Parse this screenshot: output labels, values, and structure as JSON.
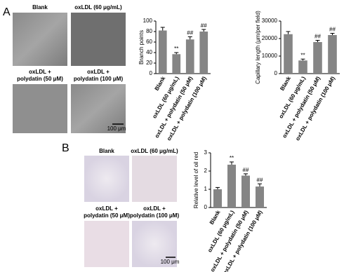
{
  "panels": [
    {
      "label": "A",
      "captions": [
        [
          "Blank"
        ],
        [
          "oxLDL (60 μg/mL)"
        ],
        [
          "oxLDL +",
          "polydatin (50 μM)"
        ],
        [
          "oxLDL +",
          "polydatin (100 μM)"
        ]
      ],
      "scale_bar": "100 μm"
    },
    {
      "label": "B",
      "captions": [
        [
          "Blank"
        ],
        [
          "oxLDL (60 μg/mL)"
        ],
        [
          "oxLDL +",
          "polydatin (50 μM)"
        ],
        [
          "oxLDL +",
          "polydatin (100 μM)"
        ]
      ],
      "scale_bar": "100 μm"
    }
  ],
  "chart_data": [
    {
      "type": "bar",
      "ylabel": "Branch points",
      "color": "#858585",
      "categories": [
        "Blank",
        "oxLDL (60 μg/mL)",
        "oxLDL + polydatin (50 μM)",
        "oxLDL + polydatin (100 μM)"
      ],
      "values": [
        82,
        37,
        65,
        80
      ],
      "errors": [
        6,
        3,
        5,
        4
      ],
      "significance": [
        null,
        "**",
        "##",
        "##"
      ],
      "ylim": [
        0,
        100
      ],
      "yticks": [
        0,
        20,
        40,
        60,
        80,
        100
      ]
    },
    {
      "type": "bar",
      "ylabel": "Capillary length (μm/per field)",
      "color": "#858585",
      "categories": [
        "Blank",
        "oxLDL (60 μg/mL)",
        "oxLDL + polydatin (50 μM)",
        "oxLDL + polydatin (100 μM)"
      ],
      "values": [
        22500,
        7500,
        18000,
        22000
      ],
      "errors": [
        1500,
        800,
        1000,
        1000
      ],
      "significance": [
        null,
        "**",
        "##",
        "##"
      ],
      "ylim": [
        0,
        30000
      ],
      "yticks": [
        0,
        10000,
        20000,
        30000
      ]
    },
    {
      "type": "bar",
      "ylabel": "Relative level of oil red",
      "color": "#858585",
      "categories": [
        "Blank",
        "oxLDL (60 μg/mL)",
        "oxLDL + polydatin (50 μM)",
        "oxLDL + polydatin (100 μM)"
      ],
      "values": [
        1.0,
        2.35,
        1.75,
        1.15
      ],
      "errors": [
        0.1,
        0.15,
        0.1,
        0.15
      ],
      "significance": [
        null,
        "**",
        "##",
        "##"
      ],
      "ylim": [
        0,
        3
      ],
      "yticks": [
        0,
        1,
        2,
        3
      ]
    }
  ]
}
